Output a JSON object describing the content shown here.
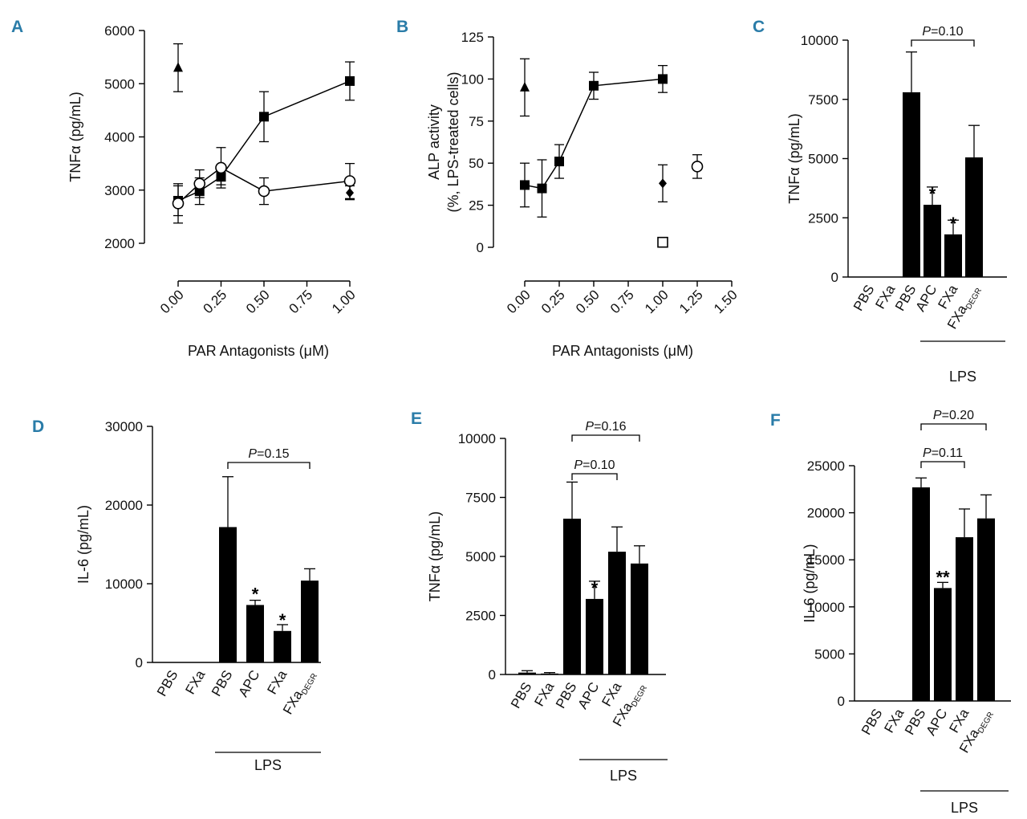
{
  "chart_data": [
    {
      "panel": "A",
      "type": "line",
      "xlabel": "PAR Antagonists (μM)",
      "ylabel": "TNFα (pg/mL)",
      "ylim": [
        2000,
        6000
      ],
      "xlim": [
        0,
        1.0
      ],
      "yticks": [
        "2000",
        "3000",
        "4000",
        "5000",
        "6000"
      ],
      "xticks": [
        "0.00",
        "0.25",
        "0.50",
        "0.75",
        "1.00"
      ],
      "series": [
        {
          "name": "filled square",
          "marker": "square-filled",
          "connected": true,
          "x": [
            0,
            0.125,
            0.25,
            0.5,
            1.0
          ],
          "y": [
            2800,
            2980,
            3250,
            4380,
            5050
          ],
          "err": [
            280,
            250,
            150,
            470,
            360
          ]
        },
        {
          "name": "open circle",
          "marker": "circle-open",
          "connected": true,
          "x": [
            0,
            0.125,
            0.25,
            0.5,
            1.0
          ],
          "y": [
            2750,
            3120,
            3420,
            2980,
            3170
          ],
          "err": [
            370,
            260,
            380,
            250,
            330
          ]
        },
        {
          "name": "filled triangle",
          "marker": "triangle-filled",
          "connected": false,
          "x": [
            0
          ],
          "y": [
            5300
          ],
          "err": [
            450
          ]
        },
        {
          "name": "filled diamond",
          "marker": "diamond-filled",
          "connected": false,
          "x": [
            1.0
          ],
          "y": [
            2950
          ],
          "err": [
            130
          ]
        }
      ]
    },
    {
      "panel": "B",
      "type": "line",
      "xlabel": "PAR Antagonists (μM)",
      "ylabel_line1": "ALP activity",
      "ylabel_line2": "(%, LPS-treated cells)",
      "ylim": [
        0,
        125
      ],
      "xlim": [
        0,
        1.5
      ],
      "yticks": [
        "0",
        "25",
        "50",
        "75",
        "100",
        "125"
      ],
      "xticks": [
        "0.00",
        "0.25",
        "0.50",
        "0.75",
        "1.00",
        "1.25",
        "1.50"
      ],
      "series": [
        {
          "name": "filled square",
          "marker": "square-filled",
          "connected": true,
          "x": [
            0,
            0.125,
            0.25,
            0.5,
            1.0
          ],
          "y": [
            37,
            35,
            51,
            96,
            100
          ],
          "err": [
            13,
            17,
            10,
            8,
            8
          ]
        },
        {
          "name": "filled triangle",
          "marker": "triangle-filled",
          "connected": false,
          "x": [
            0
          ],
          "y": [
            95
          ],
          "err": [
            17
          ]
        },
        {
          "name": "filled diamond",
          "marker": "diamond-filled",
          "connected": false,
          "x": [
            1.0
          ],
          "y": [
            38
          ],
          "err": [
            11
          ]
        },
        {
          "name": "open square",
          "marker": "square-open",
          "connected": false,
          "x": [
            1.0
          ],
          "y": [
            3
          ],
          "err": [
            2
          ]
        },
        {
          "name": "open circle",
          "marker": "circle-open",
          "connected": false,
          "x": [
            1.25
          ],
          "y": [
            48
          ],
          "err": [
            7
          ]
        }
      ]
    },
    {
      "panel": "C",
      "type": "bar",
      "ylabel": "TNFα (pg/mL)",
      "ylim": [
        0,
        10000
      ],
      "yticks": [
        "0",
        "2500",
        "5000",
        "7500",
        "10000"
      ],
      "categories": [
        "PBS",
        "FXa",
        "PBS",
        "APC",
        "FXa",
        "FXa"
      ],
      "category_subscripts": [
        "",
        "",
        "",
        "",
        "",
        "DEGR"
      ],
      "values": [
        0,
        0,
        7800,
        3050,
        1800,
        5050
      ],
      "errors": [
        0,
        0,
        1700,
        750,
        600,
        1350
      ],
      "significance": [
        "",
        "",
        "",
        "*",
        "*",
        ""
      ],
      "group_label": "LPS",
      "brackets": [
        {
          "text": "P=0.10",
          "from": 2,
          "to": 5
        }
      ]
    },
    {
      "panel": "D",
      "type": "bar",
      "ylabel": "IL-6 (pg/mL)",
      "ylim": [
        0,
        30000
      ],
      "yticks": [
        "0",
        "10000",
        "20000",
        "30000"
      ],
      "categories": [
        "PBS",
        "FXa",
        "PBS",
        "APC",
        "FXa",
        "FXa"
      ],
      "category_subscripts": [
        "",
        "",
        "",
        "",
        "",
        "DEGR"
      ],
      "values": [
        0,
        0,
        17200,
        7300,
        4000,
        10400
      ],
      "errors": [
        0,
        0,
        6400,
        600,
        800,
        1500
      ],
      "significance": [
        "",
        "",
        "",
        "*",
        "*",
        ""
      ],
      "group_label": "LPS",
      "brackets": [
        {
          "text": "P=0.15",
          "from": 2,
          "to": 5
        }
      ]
    },
    {
      "panel": "E",
      "type": "bar",
      "ylabel": "TNFα (pg/mL)",
      "ylim": [
        0,
        10000
      ],
      "yticks": [
        "0",
        "2500",
        "5000",
        "7500",
        "10000"
      ],
      "categories": [
        "PBS",
        "FXa",
        "PBS",
        "APC",
        "FXa",
        "FXa"
      ],
      "category_subscripts": [
        "",
        "",
        "",
        "",
        "",
        "DEGR"
      ],
      "values": [
        80,
        40,
        6600,
        3200,
        5200,
        4700
      ],
      "errors": [
        80,
        40,
        1550,
        750,
        1050,
        750
      ],
      "significance": [
        "",
        "",
        "",
        "*",
        "",
        ""
      ],
      "group_label": "LPS",
      "brackets": [
        {
          "text": "P=0.10",
          "from": 2,
          "to": 4
        },
        {
          "text": "P=0.16",
          "from": 2,
          "to": 5
        }
      ]
    },
    {
      "panel": "F",
      "type": "bar",
      "ylabel": "IL-6 (pg/mL)",
      "ylim": [
        0,
        25000
      ],
      "yticks": [
        "0",
        "5000",
        "10000",
        "15000",
        "20000",
        "25000"
      ],
      "categories": [
        "PBS",
        "FXa",
        "PBS",
        "APC",
        "FXa",
        "FXa"
      ],
      "category_subscripts": [
        "",
        "",
        "",
        "",
        "",
        "DEGR"
      ],
      "values": [
        0,
        0,
        22700,
        12000,
        17400,
        19400
      ],
      "errors": [
        0,
        0,
        1000,
        600,
        3000,
        2500
      ],
      "significance": [
        "",
        "",
        "",
        "**",
        "",
        ""
      ],
      "group_label": "LPS",
      "brackets": [
        {
          "text": "P=0.11",
          "from": 2,
          "to": 4
        },
        {
          "text": "P=0.20",
          "from": 2,
          "to": 5
        }
      ]
    }
  ]
}
